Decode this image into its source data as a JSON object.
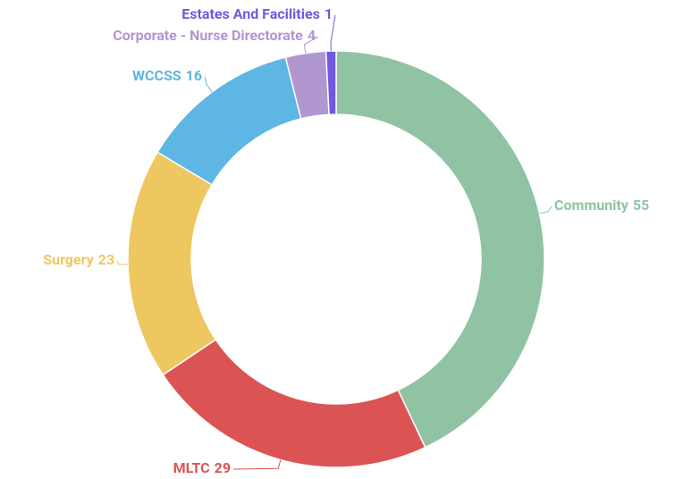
{
  "chart_data": {
    "type": "donut",
    "categories": [
      "Community",
      "MLTC",
      "Surgery",
      "WCCSS",
      "Corporate - Nurse Directorate",
      "Estates And Facilities"
    ],
    "values": [
      55,
      29,
      23,
      16,
      4,
      1
    ],
    "colors": [
      "#8fc3a4",
      "#dc5353",
      "#eec760",
      "#5db6e4",
      "#b197d0",
      "#7257e0"
    ]
  }
}
